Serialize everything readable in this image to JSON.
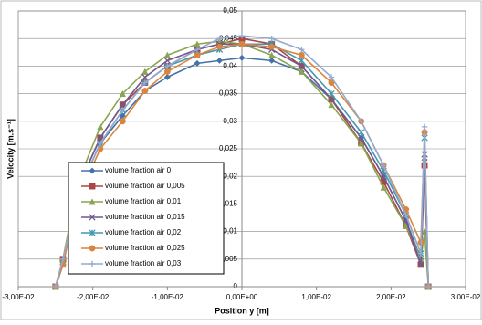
{
  "chart_data": {
    "type": "line",
    "xlabel": "Position y [m]",
    "ylabel": "Velocity [m.s⁻¹]",
    "x": [
      -0.025,
      -0.024,
      -0.022,
      -0.019,
      -0.016,
      -0.013,
      -0.01,
      -0.006,
      -0.003,
      0,
      0.004,
      0.008,
      0.012,
      0.016,
      0.019,
      0.022,
      0.024,
      0.0245,
      0.025
    ],
    "series": [
      {
        "name": "volume fraction air 0",
        "color": "#4572a7",
        "marker": "diamond",
        "values": [
          0,
          0.004,
          0.017,
          0.026,
          0.031,
          0.0355,
          0.038,
          0.0405,
          0.041,
          0.0415,
          0.041,
          0.039,
          0.034,
          0.027,
          0.02,
          0.012,
          0.005,
          0.023,
          0
        ]
      },
      {
        "name": "volume fraction air 0,005",
        "color": "#aa4643",
        "marker": "square",
        "values": [
          0,
          0.005,
          0.018,
          0.027,
          0.033,
          0.037,
          0.04,
          0.043,
          0.044,
          0.045,
          0.044,
          0.04,
          0.034,
          0.026,
          0.019,
          0.011,
          0.004,
          0.022,
          0
        ]
      },
      {
        "name": "volume fraction air 0,01",
        "color": "#89a54e",
        "marker": "triangle",
        "values": [
          0,
          0.005,
          0.019,
          0.029,
          0.035,
          0.039,
          0.042,
          0.044,
          0.0445,
          0.044,
          0.042,
          0.039,
          0.033,
          0.026,
          0.018,
          0.011,
          0.005,
          0.01,
          0
        ]
      },
      {
        "name": "volume fraction air 0,015",
        "color": "#71588f",
        "marker": "x",
        "values": [
          0,
          0.004,
          0.018,
          0.027,
          0.033,
          0.038,
          0.041,
          0.043,
          0.044,
          0.044,
          0.043,
          0.04,
          0.034,
          0.027,
          0.02,
          0.012,
          0.004,
          0.024,
          0
        ]
      },
      {
        "name": "volume fraction air 0,02",
        "color": "#4198af",
        "marker": "star",
        "values": [
          0,
          0.004,
          0.017,
          0.026,
          0.032,
          0.037,
          0.04,
          0.042,
          0.043,
          0.044,
          0.044,
          0.041,
          0.035,
          0.028,
          0.021,
          0.013,
          0.006,
          0.027,
          0
        ]
      },
      {
        "name": "volume fraction air 0,025",
        "color": "#db843d",
        "marker": "circle",
        "values": [
          0,
          0.004,
          0.016,
          0.025,
          0.03,
          0.0355,
          0.039,
          0.042,
          0.0435,
          0.044,
          0.0435,
          0.042,
          0.037,
          0.03,
          0.022,
          0.014,
          0.008,
          0.028,
          0
        ]
      },
      {
        "name": "volume fraction air 0,03",
        "color": "#93a9cf",
        "marker": "plus",
        "values": [
          0,
          0.005,
          0.017,
          0.026,
          0.032,
          0.037,
          0.04,
          0.043,
          0.045,
          0.0455,
          0.045,
          0.043,
          0.038,
          0.03,
          0.022,
          0.013,
          0.006,
          0.029,
          0
        ]
      }
    ],
    "xlim": [
      -0.03,
      0.03
    ],
    "xticks": [
      {
        "value": -0.03,
        "label": "-3,00E-02"
      },
      {
        "value": -0.02,
        "label": "-2,00E-02"
      },
      {
        "value": -0.01,
        "label": "-1,00E-02"
      },
      {
        "value": 0,
        "label": "0,00E+00"
      },
      {
        "value": 0.01,
        "label": "1,00E-02"
      },
      {
        "value": 0.02,
        "label": "2,00E-02"
      },
      {
        "value": 0.03,
        "label": "3,00E-02"
      }
    ],
    "ylim": [
      0,
      0.05
    ],
    "yticks": [
      0,
      {
        "value": 0.005,
        "label": "0,005"
      },
      {
        "value": 0.01,
        "label": "0,01"
      },
      {
        "value": 0.015,
        "label": "0,015"
      },
      {
        "value": 0.02,
        "label": "0,02"
      },
      {
        "value": 0.025,
        "label": "0,025"
      },
      {
        "value": 0.03,
        "label": "0,03"
      },
      {
        "value": 0.035,
        "label": "0,035"
      },
      {
        "value": 0.04,
        "label": "0,04"
      },
      {
        "value": 0.045,
        "label": "0,045"
      },
      {
        "value": 0.05,
        "label": "0,05"
      }
    ],
    "grid": true,
    "legend": "lower left"
  }
}
